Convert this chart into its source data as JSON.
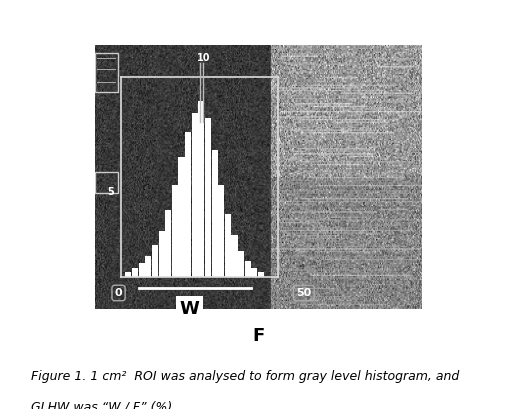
{
  "fig_width": 5.14,
  "fig_height": 4.09,
  "dpi": 100,
  "bg_color": "#ffffff",
  "caption_text1": "Figure 1. 1 cm²  ROI was analysed to form gray level histogram, and",
  "caption_text2": "GLHW was “W / F” (%).",
  "caption_fontsize": 9,
  "histogram_bars": [
    0.03,
    0.05,
    0.08,
    0.12,
    0.18,
    0.26,
    0.38,
    0.52,
    0.68,
    0.82,
    0.93,
    1.0,
    0.9,
    0.72,
    0.52,
    0.36,
    0.24,
    0.15,
    0.09,
    0.05,
    0.03
  ],
  "W_label": "W",
  "F_label": "F",
  "label_0": "0",
  "label_50": "50",
  "label_10": "10",
  "label_5": "5"
}
